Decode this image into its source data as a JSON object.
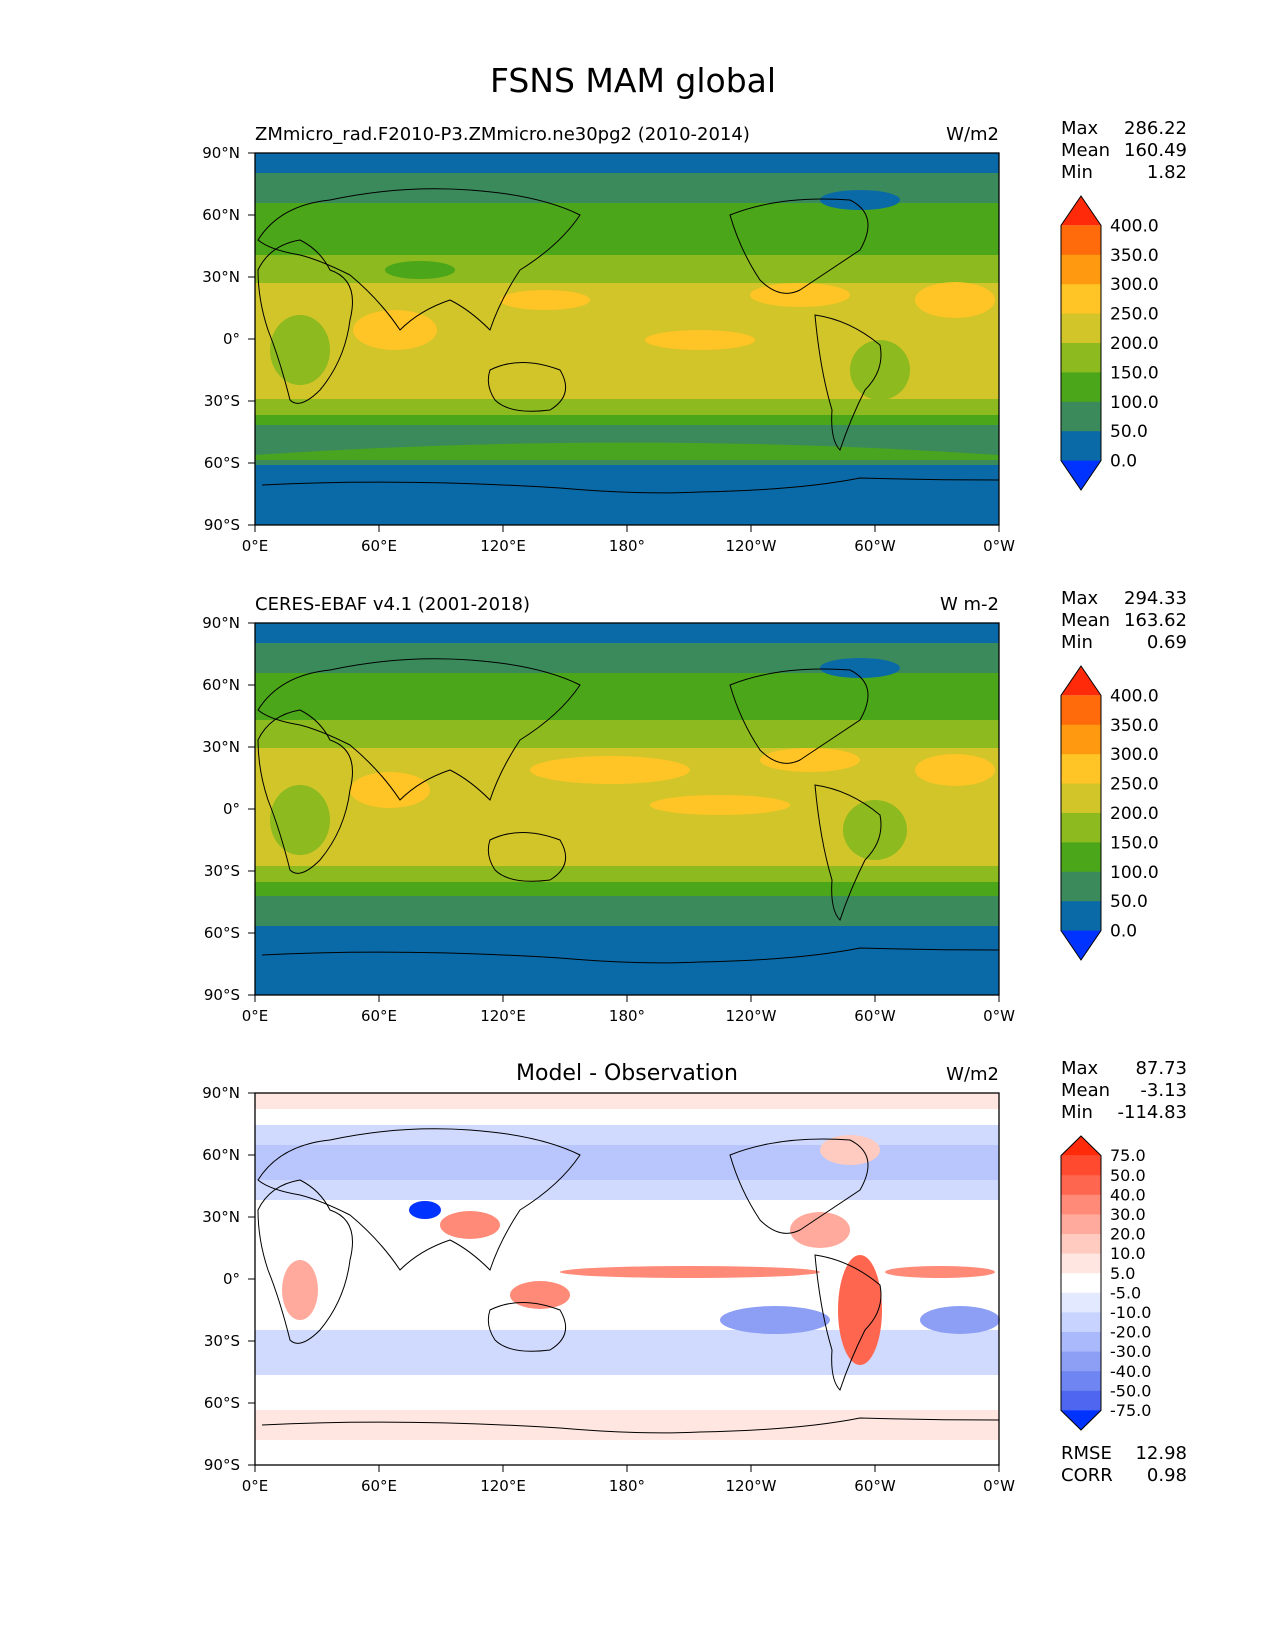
{
  "title": "FSNS MAM global",
  "lat_ticks": [
    "90°N",
    "60°N",
    "30°N",
    "0°",
    "30°S",
    "60°S",
    "90°S"
  ],
  "lon_ticks": [
    "0°E",
    "60°E",
    "120°E",
    "180°",
    "120°W",
    "60°W",
    "0°W"
  ],
  "panels": [
    {
      "left_title": "ZMmicro_rad.F2010-P3.ZMmicro.ne30pg2 (2010-2014)",
      "center_title": "",
      "units": "W/m2",
      "stats": [
        {
          "label": "Max",
          "value": "286.22"
        },
        {
          "label": "Mean",
          "value": "160.49"
        },
        {
          "label": "Min",
          "value": "1.82"
        }
      ],
      "colorbar": {
        "labels": [
          "400.0",
          "350.0",
          "300.0",
          "250.0",
          "200.0",
          "150.0",
          "100.0",
          "50.0",
          "0.0"
        ],
        "colors": [
          "#ff2a0a",
          "#ff6a0a",
          "#ff9a10",
          "#ffc425",
          "#d2c52a",
          "#8dba1e",
          "#4ba619",
          "#3b8a5c",
          "#0a6aa8",
          "#0033ff"
        ]
      }
    },
    {
      "left_title": "CERES-EBAF v4.1 (2001-2018)",
      "center_title": "",
      "units": "W m-2",
      "stats": [
        {
          "label": "Max",
          "value": "294.33"
        },
        {
          "label": "Mean",
          "value": "163.62"
        },
        {
          "label": "Min",
          "value": "0.69"
        }
      ],
      "colorbar": {
        "labels": [
          "400.0",
          "350.0",
          "300.0",
          "250.0",
          "200.0",
          "150.0",
          "100.0",
          "50.0",
          "0.0"
        ],
        "colors": [
          "#ff2a0a",
          "#ff6a0a",
          "#ff9a10",
          "#ffc425",
          "#d2c52a",
          "#8dba1e",
          "#4ba619",
          "#3b8a5c",
          "#0a6aa8",
          "#0033ff"
        ]
      }
    },
    {
      "left_title": "",
      "center_title": "Model - Observation",
      "units": "W/m2",
      "stats": [
        {
          "label": "Max",
          "value": "87.73"
        },
        {
          "label": "Mean",
          "value": "-3.13"
        },
        {
          "label": "Min",
          "value": "-114.83"
        }
      ],
      "extra_stats": [
        {
          "label": "RMSE",
          "value": "12.98"
        },
        {
          "label": "CORR",
          "value": "0.98"
        }
      ],
      "colorbar": {
        "labels": [
          "75.0",
          "50.0",
          "40.0",
          "30.0",
          "20.0",
          "10.0",
          "5.0",
          "-5.0",
          "-10.0",
          "-20.0",
          "-30.0",
          "-40.0",
          "-50.0",
          "-75.0"
        ],
        "colors": [
          "#ff2a0a",
          "#ff4a30",
          "#ff6650",
          "#ff8a78",
          "#ffaa9c",
          "#ffcabf",
          "#ffe6e0",
          "#ffffff",
          "#e3e9ff",
          "#c8d3ff",
          "#aab9fb",
          "#8c9ff5",
          "#6e85f2",
          "#4f66f0",
          "#0033ff"
        ]
      }
    }
  ]
}
